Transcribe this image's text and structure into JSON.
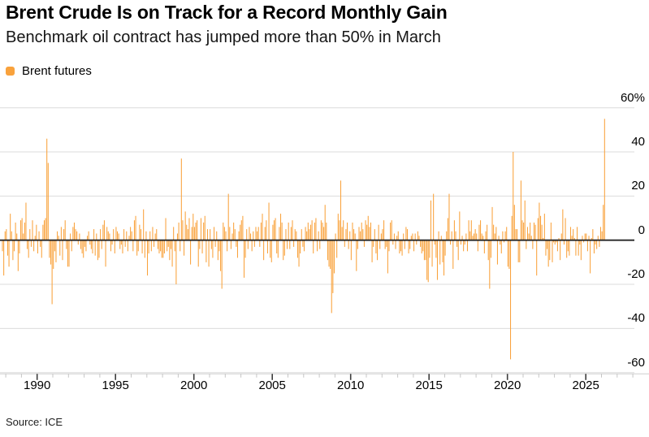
{
  "header": {
    "title": "Brent Crude Is on Track for a Record Monthly Gain",
    "subtitle": "Benchmark oil contract has jumped more than 50% in March"
  },
  "legend": {
    "label": "Brent futures",
    "swatch_color": "#F9A23C"
  },
  "source": "Source: ICE",
  "colors": {
    "bar": "#F9A23C",
    "grid": "#DBDBDB",
    "zero_line": "#262626",
    "axis_line": "#CFCFCF",
    "tick_minor": "#C4C4C4",
    "tick_major": "#3C3C3C",
    "text": "#000000"
  },
  "chart_data": {
    "type": "bar",
    "title": "Brent Crude Is on Track for a Record Monthly Gain",
    "subtitle": "Benchmark oil contract has jumped more than 50% in March",
    "xlabel": "",
    "ylabel": "",
    "unit": "%",
    "frequency": "monthly",
    "start": "1987-10",
    "end": "2026-03",
    "ylim": [
      -65,
      62
    ],
    "grid": "horizontal",
    "legend_position": "top-left",
    "y_ticks": [
      {
        "value": 60,
        "label": "60%"
      },
      {
        "value": 40,
        "label": "40"
      },
      {
        "value": 20,
        "label": "20"
      },
      {
        "value": 0,
        "label": "0"
      },
      {
        "value": -20,
        "label": "-20"
      },
      {
        "value": -40,
        "label": "-40"
      },
      {
        "value": -60,
        "label": "-60"
      }
    ],
    "x_ticks_major": [
      1990,
      1995,
      2000,
      2005,
      2010,
      2015,
      2020,
      2025
    ],
    "x_minor_tick_year_range": [
      1988,
      2028
    ],
    "notable_points": [
      {
        "month": "1990-08",
        "value": 46
      },
      {
        "month": "2008-10",
        "value": -33
      },
      {
        "month": "2020-03",
        "value": -54
      },
      {
        "month": "2020-05",
        "value": 40
      },
      {
        "month": "2026-03",
        "value": 55
      }
    ],
    "series": [
      {
        "name": "Brent futures",
        "color": "#F9A23C",
        "values": [
          -5,
          -16,
          4,
          5,
          -7,
          -12,
          12,
          4,
          -9,
          -5,
          8,
          3,
          -14,
          -6,
          9,
          10,
          3,
          8,
          17,
          -4,
          -8,
          5,
          -3,
          9,
          -5,
          2,
          7,
          -6,
          4,
          -3,
          -8,
          7,
          9,
          10,
          46,
          35,
          -8,
          -11,
          -29,
          -13,
          -5,
          -10,
          4,
          2,
          -7,
          6,
          -9,
          5,
          9,
          -4,
          -12,
          -12,
          3,
          -5,
          6,
          8,
          5,
          4,
          -2,
          3,
          -4,
          -6,
          -8,
          -3,
          -5,
          2,
          4,
          -2,
          -4,
          -6,
          5,
          -7,
          3,
          -9,
          -8,
          5,
          -4,
          7,
          9,
          -12,
          6,
          4,
          3,
          -5,
          -2,
          5,
          -6,
          6,
          4,
          3,
          -4,
          -2,
          -6,
          5,
          -3,
          4,
          -5,
          2,
          6,
          4,
          -5,
          9,
          11,
          -7,
          -5,
          7,
          5,
          -6,
          14,
          -8,
          4,
          -16,
          -6,
          4,
          -5,
          6,
          -3,
          3,
          5,
          -4,
          -6,
          -5,
          -8,
          -8,
          -6,
          10,
          -5,
          -3,
          -9,
          -4,
          -12,
          6,
          -5,
          -20,
          3,
          8,
          -5,
          37,
          9,
          -7,
          13,
          7,
          5,
          10,
          -11,
          6,
          12,
          6,
          8,
          9,
          -12,
          -4,
          10,
          -6,
          8,
          11,
          -10,
          5,
          -12,
          5,
          -4,
          -8,
          6,
          -3,
          4,
          -9,
          -5,
          -14,
          -22,
          8,
          6,
          4,
          -5,
          21,
          6,
          -4,
          3,
          8,
          5,
          -3,
          -8,
          4,
          7,
          9,
          11,
          -17,
          -8,
          5,
          -4,
          6,
          3,
          -5,
          4,
          -3,
          6,
          4,
          6,
          -3,
          8,
          12,
          -9,
          6,
          9,
          -6,
          17,
          -8,
          -10,
          7,
          9,
          10,
          -6,
          -8,
          6,
          12,
          8,
          -9,
          -7,
          5,
          -4,
          8,
          -4,
          6,
          9,
          -3,
          5,
          4,
          -8,
          -12,
          -6,
          5,
          -3,
          -5,
          6,
          4,
          8,
          5,
          7,
          9,
          -6,
          8,
          10,
          -5,
          4,
          -4,
          9,
          8,
          6,
          16,
          8,
          -9,
          -12,
          -13,
          -33,
          -24,
          -15,
          3,
          -8,
          12,
          9,
          27,
          6,
          9,
          -3,
          5,
          8,
          -4,
          4,
          -9,
          8,
          5,
          3,
          -14,
          -4,
          6,
          4,
          8,
          5,
          -3,
          9,
          7,
          11,
          6,
          8,
          -10,
          -3,
          5,
          -6,
          -9,
          7,
          -4,
          3,
          5,
          9,
          -4,
          -3,
          -15,
          -5,
          8,
          9,
          -2,
          3,
          -4,
          2,
          4,
          -6,
          -5,
          -7,
          3,
          -4,
          6,
          5,
          -6,
          -4,
          2,
          3,
          -5,
          3,
          -2,
          4,
          2,
          -3,
          -6,
          -5,
          -9,
          -9,
          -18,
          -19,
          -8,
          18,
          -12,
          21,
          -2,
          -8,
          -18,
          4,
          -11,
          2,
          -10,
          -16,
          -7,
          4,
          10,
          21,
          -2,
          4,
          -13,
          9,
          4,
          -3,
          -9,
          13,
          -2,
          2,
          -5,
          -2,
          3,
          -5,
          9,
          4,
          9,
          2,
          3,
          5,
          3,
          -5,
          7,
          9,
          3,
          2,
          -6,
          4,
          7,
          -9,
          -22,
          -8,
          15,
          7,
          3,
          6,
          -11,
          2,
          -2,
          -6,
          4,
          -1,
          4,
          6,
          -12,
          -13,
          -54,
          11,
          40,
          16,
          5,
          5,
          -10,
          -10,
          27,
          9,
          8,
          18,
          -4,
          6,
          3,
          8,
          2,
          -4,
          8,
          7,
          -16,
          10,
          17,
          11,
          7,
          1,
          12,
          -7,
          -4,
          -12,
          -9,
          8,
          -10,
          -1,
          -2,
          -1,
          -5,
          1,
          -9,
          3,
          14,
          -2,
          10,
          -8,
          -5,
          -7,
          6,
          2,
          5,
          1,
          -7,
          6,
          -7,
          -2,
          -9,
          2,
          -1,
          3,
          3,
          -5,
          2,
          -15,
          1,
          5,
          -6,
          -2,
          -4,
          2,
          -3,
          6,
          4,
          16,
          55
        ]
      }
    ]
  }
}
